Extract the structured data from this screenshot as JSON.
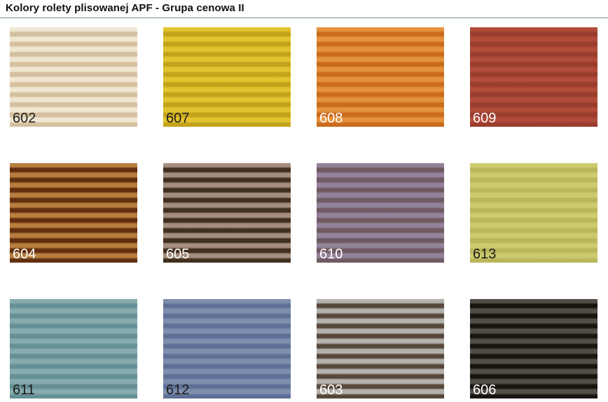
{
  "page": {
    "title": "Kolory rolety plisowanej APF - Grupa cenowa II"
  },
  "palette": {
    "divider_color": "#7a947a",
    "label_dark": "#1c1c1c",
    "label_light": "#ffffff"
  },
  "swatches": [
    {
      "code": "602",
      "light_stripe": "#f0e7d2",
      "dark_stripe": "#d4bf9e",
      "label_color": "dark"
    },
    {
      "code": "607",
      "light_stripe": "#e3c32e",
      "dark_stripe": "#c3a31c",
      "label_color": "dark"
    },
    {
      "code": "608",
      "light_stripe": "#e4923e",
      "dark_stripe": "#ca6b1e",
      "label_color": "light"
    },
    {
      "code": "609",
      "light_stripe": "#b14b3a",
      "dark_stripe": "#993d2f",
      "label_color": "light"
    },
    {
      "code": "604",
      "light_stripe": "#b77e3e",
      "dark_stripe": "#612e0e",
      "label_color": "light"
    },
    {
      "code": "605",
      "light_stripe": "#a68e7d",
      "dark_stripe": "#402e1e",
      "label_color": "light"
    },
    {
      "code": "610",
      "light_stripe": "#92839a",
      "dark_stripe": "#705a61",
      "label_color": "light"
    },
    {
      "code": "613",
      "light_stripe": "#cecb6f",
      "dark_stripe": "#bab75a",
      "label_color": "dark"
    },
    {
      "code": "611",
      "light_stripe": "#86acae",
      "dark_stripe": "#649095",
      "label_color": "dark"
    },
    {
      "code": "612",
      "light_stripe": "#7f8fad",
      "dark_stripe": "#5f7097",
      "label_color": "dark"
    },
    {
      "code": "603",
      "light_stripe": "#b4b2ad",
      "dark_stripe": "#564739",
      "label_color": "light"
    },
    {
      "code": "606",
      "light_stripe": "#524e47",
      "dark_stripe": "#181510",
      "label_color": "light"
    }
  ]
}
